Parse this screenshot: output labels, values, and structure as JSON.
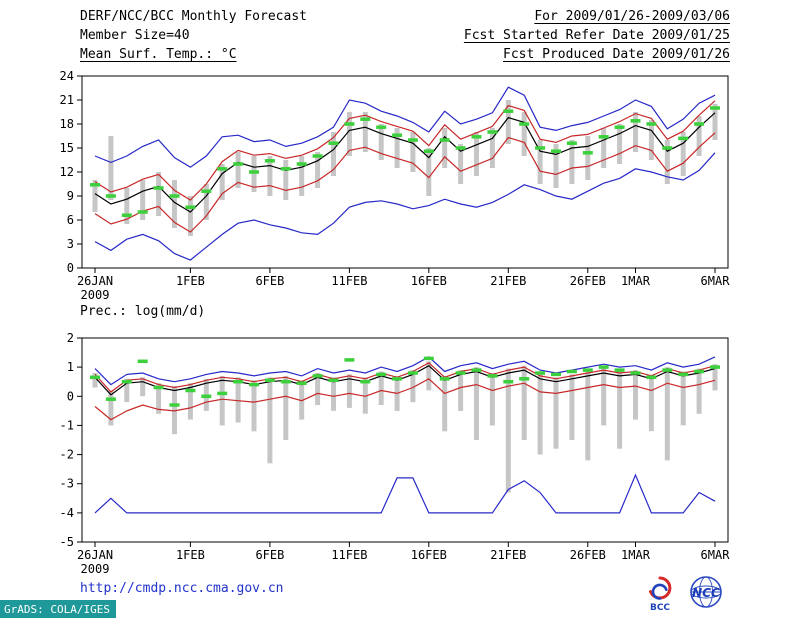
{
  "header": {
    "title": "DERF/NCC/BCC Monthly Forecast",
    "period": "For 2009/01/26-2009/03/06",
    "member_size": "Member Size=40",
    "refer_date": "Fcst Started Refer Date 2009/01/25",
    "produced_date": "Fcst Produced Date 2009/01/26"
  },
  "footer": {
    "url": "http://cmdp.ncc.cma.gov.cn",
    "grads_label": "GrADS: COLA/IGES",
    "bcc_label": "BCC",
    "ncc_label": "NCC"
  },
  "colors": {
    "line_blue": "#2828c8",
    "line_red": "#c82828",
    "line_black": "#000000",
    "obs_green": "#3cd03c",
    "spread_gray": "#c6c6c6",
    "url_blue": "#2233cc",
    "stamp_teal": "#1e9898"
  },
  "chart_data": [
    {
      "type": "line",
      "title": "Mean Surf. Temp.: °C",
      "xlabel": "",
      "ylabel": "",
      "ylim": [
        0,
        24
      ],
      "yticks": [
        0,
        3,
        6,
        9,
        12,
        15,
        18,
        21,
        24
      ],
      "x_start": "26JAN2009",
      "x_end": "6MAR2009",
      "n_points": 40,
      "xticks": [
        {
          "i": 0,
          "label": "26JAN",
          "sub": "2009"
        },
        {
          "i": 6,
          "label": "1FEB"
        },
        {
          "i": 11,
          "label": "6FEB"
        },
        {
          "i": 16,
          "label": "11FEB"
        },
        {
          "i": 21,
          "label": "16FEB"
        },
        {
          "i": 26,
          "label": "21FEB"
        },
        {
          "i": 31,
          "label": "26FEB"
        },
        {
          "i": 34,
          "label": "1MAR"
        },
        {
          "i": 39,
          "label": "6MAR"
        }
      ],
      "series": [
        {
          "name": "ensemble max",
          "color": "#2828c8",
          "style": "solid",
          "values": [
            14.0,
            13.2,
            14.0,
            15.2,
            16.0,
            13.8,
            12.6,
            14.0,
            16.4,
            16.6,
            15.8,
            16.0,
            15.2,
            15.6,
            16.4,
            17.6,
            21.0,
            20.6,
            19.6,
            19.0,
            18.2,
            17.0,
            19.6,
            18.0,
            18.6,
            19.4,
            22.6,
            21.6,
            17.6,
            17.2,
            17.8,
            18.2,
            19.0,
            19.8,
            21.0,
            20.2,
            17.4,
            18.6,
            20.6,
            21.6
          ]
        },
        {
          "name": "upper quartile",
          "color": "#c82828",
          "style": "solid",
          "values": [
            10.8,
            9.5,
            10.1,
            11.1,
            11.7,
            9.7,
            8.5,
            10.5,
            13.3,
            14.7,
            14.1,
            14.3,
            13.7,
            14.1,
            14.9,
            16.3,
            18.7,
            19.1,
            18.3,
            17.7,
            17.1,
            15.3,
            17.9,
            16.1,
            16.9,
            17.7,
            20.3,
            19.7,
            16.1,
            15.7,
            16.5,
            16.7,
            17.5,
            18.3,
            19.3,
            18.7,
            16.1,
            17.1,
            19.1,
            20.9
          ]
        },
        {
          "name": "ensemble mean",
          "color": "#000000",
          "style": "solid",
          "values": [
            9.3,
            8.0,
            8.6,
            9.6,
            10.2,
            8.2,
            7.0,
            9.0,
            11.8,
            13.2,
            12.6,
            12.8,
            12.2,
            12.6,
            13.4,
            14.8,
            17.2,
            17.6,
            16.8,
            16.2,
            15.6,
            13.8,
            16.4,
            14.6,
            15.4,
            16.2,
            18.8,
            18.2,
            14.6,
            14.2,
            15.0,
            15.2,
            16.0,
            16.8,
            17.8,
            17.2,
            14.6,
            15.6,
            17.6,
            19.4
          ]
        },
        {
          "name": "lower quartile",
          "color": "#c82828",
          "style": "solid",
          "values": [
            6.8,
            5.5,
            6.1,
            7.1,
            7.7,
            5.7,
            4.5,
            6.5,
            9.3,
            10.7,
            10.1,
            10.3,
            9.7,
            10.1,
            10.9,
            12.3,
            14.7,
            15.1,
            14.3,
            13.7,
            13.1,
            11.3,
            13.9,
            12.1,
            12.9,
            13.7,
            16.3,
            15.7,
            12.1,
            11.7,
            12.5,
            12.7,
            13.5,
            14.3,
            15.3,
            14.7,
            12.1,
            13.1,
            15.1,
            16.9
          ]
        },
        {
          "name": "ensemble min",
          "color": "#2828c8",
          "style": "solid",
          "values": [
            3.3,
            2.2,
            3.6,
            4.2,
            3.4,
            1.8,
            1.0,
            2.6,
            4.2,
            5.6,
            6.0,
            5.4,
            5.0,
            4.4,
            4.2,
            5.6,
            7.6,
            8.2,
            8.4,
            8.0,
            7.4,
            7.8,
            8.6,
            8.0,
            7.6,
            8.2,
            9.2,
            10.4,
            9.8,
            9.0,
            8.6,
            9.6,
            10.6,
            11.2,
            12.4,
            12.0,
            11.4,
            11.0,
            12.2,
            14.4
          ]
        },
        {
          "name": "observation",
          "color": "#3cd03c",
          "style": "marks",
          "values": [
            10.4,
            9.0,
            6.6,
            7.0,
            10.0,
            9.0,
            7.6,
            9.6,
            12.4,
            13.0,
            12.0,
            13.4,
            12.4,
            13.0,
            14.0,
            15.6,
            18.0,
            18.6,
            17.6,
            16.6,
            16.0,
            14.6,
            16.0,
            15.0,
            16.4,
            17.0,
            19.6,
            18.0,
            15.0,
            14.6,
            15.6,
            14.4,
            16.4,
            17.6,
            18.4,
            18.0,
            15.0,
            16.2,
            18.0,
            20.0
          ]
        }
      ],
      "bars": {
        "name": "ensemble spread",
        "color": "#c6c6c6",
        "hi": [
          11.0,
          16.5,
          10.0,
          11.0,
          12.0,
          11.0,
          9.0,
          10.5,
          13.0,
          14.5,
          14.0,
          14.0,
          13.5,
          14.0,
          14.5,
          17.0,
          19.5,
          19.5,
          18.0,
          17.5,
          17.0,
          15.0,
          17.5,
          15.5,
          17.0,
          17.5,
          21.0,
          19.5,
          16.0,
          15.5,
          16.0,
          16.5,
          17.5,
          18.0,
          19.5,
          18.5,
          16.0,
          17.0,
          19.0,
          20.5
        ],
        "lo": [
          7.0,
          8.5,
          5.5,
          6.0,
          6.5,
          5.0,
          4.0,
          6.0,
          8.5,
          10.0,
          9.5,
          9.0,
          8.5,
          9.0,
          10.0,
          11.5,
          14.0,
          14.5,
          13.5,
          12.5,
          12.0,
          9.0,
          12.5,
          10.5,
          11.5,
          12.5,
          15.5,
          14.0,
          10.5,
          10.0,
          10.5,
          11.0,
          12.5,
          13.0,
          14.5,
          13.5,
          10.5,
          11.5,
          14.0,
          16.0
        ]
      }
    },
    {
      "type": "line",
      "title": "Prec.: log(mm/d)",
      "xlabel": "",
      "ylabel": "",
      "ylim": [
        -5,
        2
      ],
      "yticks": [
        -5,
        -4,
        -3,
        -2,
        -1,
        0,
        1,
        2
      ],
      "x_start": "26JAN2009",
      "x_end": "6MAR2009",
      "n_points": 40,
      "xticks": [
        {
          "i": 0,
          "label": "26JAN",
          "sub": "2009"
        },
        {
          "i": 6,
          "label": "1FEB"
        },
        {
          "i": 11,
          "label": "6FEB"
        },
        {
          "i": 16,
          "label": "11FEB"
        },
        {
          "i": 21,
          "label": "16FEB"
        },
        {
          "i": 26,
          "label": "21FEB"
        },
        {
          "i": 31,
          "label": "26FEB"
        },
        {
          "i": 34,
          "label": "1MAR"
        },
        {
          "i": 39,
          "label": "6MAR"
        }
      ],
      "series": [
        {
          "name": "ensemble max",
          "color": "#2828c8",
          "style": "solid",
          "values": [
            0.95,
            0.4,
            0.75,
            0.8,
            0.6,
            0.5,
            0.6,
            0.75,
            0.85,
            0.8,
            0.7,
            0.8,
            0.85,
            0.7,
            0.95,
            0.8,
            0.9,
            0.8,
            1.0,
            0.85,
            1.05,
            1.35,
            0.85,
            1.05,
            1.15,
            0.95,
            1.1,
            1.2,
            0.9,
            0.8,
            0.9,
            1.0,
            1.1,
            1.0,
            1.05,
            0.9,
            1.15,
            1.0,
            1.1,
            1.35
          ]
        },
        {
          "name": "upper quartile",
          "color": "#c82828",
          "style": "solid",
          "values": [
            0.75,
            0.15,
            0.55,
            0.6,
            0.4,
            0.3,
            0.4,
            0.55,
            0.65,
            0.6,
            0.5,
            0.6,
            0.65,
            0.5,
            0.75,
            0.6,
            0.7,
            0.6,
            0.8,
            0.65,
            0.85,
            1.15,
            0.65,
            0.85,
            0.95,
            0.75,
            0.9,
            1.0,
            0.7,
            0.6,
            0.7,
            0.8,
            0.9,
            0.8,
            0.85,
            0.7,
            0.95,
            0.8,
            0.9,
            1.05
          ]
        },
        {
          "name": "ensemble mean",
          "color": "#000000",
          "style": "solid",
          "values": [
            0.65,
            0.05,
            0.45,
            0.5,
            0.3,
            0.2,
            0.3,
            0.45,
            0.55,
            0.5,
            0.4,
            0.5,
            0.55,
            0.4,
            0.65,
            0.5,
            0.6,
            0.5,
            0.7,
            0.55,
            0.75,
            1.05,
            0.55,
            0.75,
            0.85,
            0.65,
            0.8,
            0.9,
            0.6,
            0.5,
            0.6,
            0.7,
            0.8,
            0.7,
            0.75,
            0.6,
            0.85,
            0.7,
            0.8,
            0.95
          ]
        },
        {
          "name": "lower quartile",
          "color": "#c82828",
          "style": "solid",
          "values": [
            -0.35,
            -0.8,
            -0.5,
            -0.3,
            -0.45,
            -0.5,
            -0.4,
            -0.2,
            -0.1,
            -0.15,
            -0.2,
            -0.1,
            0.0,
            -0.15,
            0.1,
            0.0,
            0.1,
            0.0,
            0.2,
            0.1,
            0.3,
            0.6,
            0.1,
            0.3,
            0.4,
            0.2,
            0.35,
            0.45,
            0.15,
            0.1,
            0.2,
            0.3,
            0.4,
            0.3,
            0.35,
            0.2,
            0.45,
            0.3,
            0.4,
            0.55
          ]
        },
        {
          "name": "ensemble min",
          "color": "#2828c8",
          "style": "solid",
          "values": [
            -4.0,
            -3.5,
            -4.0,
            -4.0,
            -4.0,
            -4.0,
            -4.0,
            -4.0,
            -4.0,
            -4.0,
            -4.0,
            -4.0,
            -4.0,
            -4.0,
            -4.0,
            -4.0,
            -4.0,
            -4.0,
            -4.0,
            -2.8,
            -2.8,
            -4.0,
            -4.0,
            -4.0,
            -4.0,
            -4.0,
            -3.2,
            -2.9,
            -3.3,
            -4.0,
            -4.0,
            -4.0,
            -4.0,
            -4.0,
            -2.7,
            -4.0,
            -4.0,
            -4.0,
            -3.3,
            -3.6
          ]
        },
        {
          "name": "observation",
          "color": "#3cd03c",
          "style": "marks",
          "values": [
            0.65,
            -0.1,
            0.5,
            1.2,
            0.3,
            -0.3,
            0.2,
            0.0,
            0.1,
            0.5,
            0.4,
            0.55,
            0.5,
            0.45,
            0.7,
            0.55,
            1.25,
            0.5,
            0.75,
            0.6,
            0.8,
            1.3,
            0.6,
            0.8,
            0.9,
            0.7,
            0.5,
            0.6,
            0.8,
            0.75,
            0.85,
            0.9,
            1.0,
            0.9,
            0.8,
            0.65,
            0.9,
            0.75,
            0.85,
            1.0
          ]
        }
      ],
      "bars": {
        "name": "ensemble spread",
        "color": "#c6c6c6",
        "hi": [
          0.8,
          0.2,
          0.6,
          0.65,
          0.45,
          0.35,
          0.45,
          0.6,
          0.7,
          0.65,
          0.55,
          0.65,
          0.7,
          0.55,
          0.8,
          0.65,
          0.75,
          0.65,
          0.85,
          0.7,
          0.9,
          1.2,
          0.7,
          0.9,
          1.0,
          0.8,
          0.95,
          1.05,
          0.75,
          0.65,
          0.75,
          0.85,
          0.95,
          0.85,
          0.9,
          0.75,
          1.0,
          0.85,
          0.95,
          1.1
        ],
        "lo": [
          0.3,
          -1.0,
          -0.2,
          0.0,
          -0.6,
          -1.3,
          -0.8,
          -0.5,
          -1.0,
          -0.9,
          -1.2,
          -2.3,
          -1.5,
          -0.8,
          -0.3,
          -0.5,
          -0.4,
          -0.6,
          -0.3,
          -0.5,
          -0.2,
          0.2,
          -1.2,
          -0.5,
          -1.5,
          -1.0,
          -3.3,
          -1.5,
          -2.0,
          -1.8,
          -1.5,
          -2.2,
          -1.0,
          -1.8,
          -0.8,
          -1.2,
          -2.2,
          -1.0,
          -0.6,
          0.2
        ]
      }
    }
  ]
}
